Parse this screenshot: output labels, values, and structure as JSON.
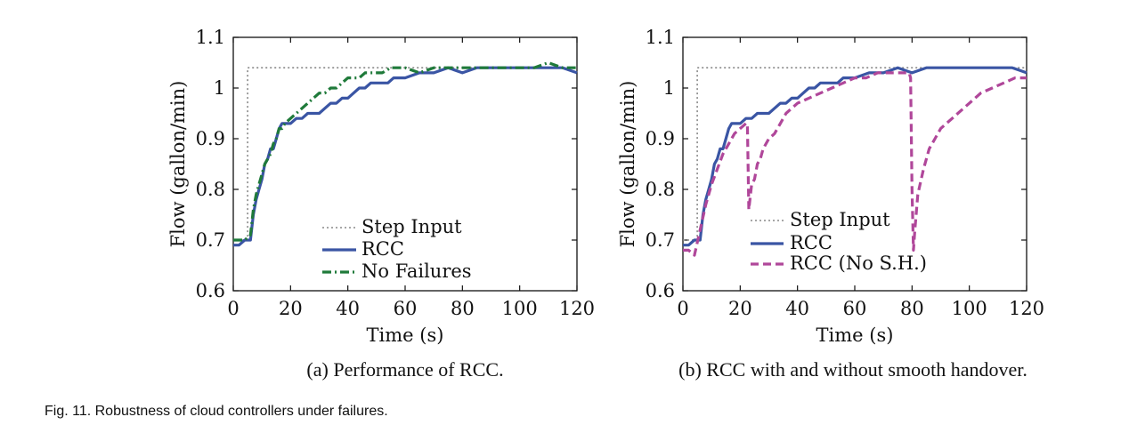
{
  "figure": {
    "caption": "Fig. 11. Robustness of cloud controllers under failures."
  },
  "chart_data": [
    {
      "type": "line",
      "subcaption": "(a) Performance of RCC.",
      "xlabel": "Time (s)",
      "ylabel": "Flow (gallon/min)",
      "xlim": [
        0,
        120
      ],
      "ylim": [
        0.6,
        1.1
      ],
      "xticks": [
        "0",
        "20",
        "40",
        "60",
        "80",
        "100",
        "120"
      ],
      "yticks": [
        "0.6",
        "0.7",
        "0.8",
        "0.9",
        "1",
        "1.1"
      ],
      "grid": false,
      "legend": "bottom-center",
      "series": [
        {
          "name": "Step Input",
          "style": "dotted",
          "color": "#888888",
          "x": [
            0,
            5,
            5,
            120
          ],
          "y": [
            0.7,
            0.7,
            1.04,
            1.04
          ]
        },
        {
          "name": "RCC",
          "style": "solid",
          "color": "#3a55a4",
          "x": [
            0,
            2,
            4,
            6,
            7,
            8,
            9,
            10,
            11,
            12,
            13,
            14,
            15,
            16,
            17,
            18,
            19,
            20,
            22,
            24,
            26,
            28,
            30,
            32,
            34,
            36,
            38,
            40,
            42,
            44,
            46,
            48,
            50,
            52,
            54,
            56,
            58,
            60,
            65,
            70,
            75,
            80,
            85,
            90,
            95,
            100,
            105,
            110,
            115,
            120
          ],
          "y": [
            0.69,
            0.69,
            0.7,
            0.7,
            0.75,
            0.78,
            0.8,
            0.82,
            0.85,
            0.86,
            0.88,
            0.88,
            0.9,
            0.92,
            0.93,
            0.93,
            0.93,
            0.93,
            0.94,
            0.94,
            0.95,
            0.95,
            0.95,
            0.96,
            0.97,
            0.97,
            0.98,
            0.98,
            0.99,
            1.0,
            1.0,
            1.01,
            1.01,
            1.01,
            1.01,
            1.02,
            1.02,
            1.02,
            1.03,
            1.03,
            1.04,
            1.03,
            1.04,
            1.04,
            1.04,
            1.04,
            1.04,
            1.04,
            1.04,
            1.03
          ]
        },
        {
          "name": "No Failures",
          "style": "dashdot",
          "color": "#1f7a3a",
          "x": [
            0,
            2,
            4,
            6,
            7,
            8,
            9,
            10,
            11,
            12,
            13,
            14,
            15,
            16,
            17,
            18,
            20,
            22,
            24,
            26,
            28,
            30,
            32,
            34,
            36,
            38,
            40,
            42,
            44,
            46,
            48,
            50,
            52,
            55,
            60,
            65,
            70,
            75,
            80,
            85,
            90,
            95,
            100,
            105,
            110,
            115,
            120
          ],
          "y": [
            0.7,
            0.7,
            0.7,
            0.71,
            0.76,
            0.79,
            0.81,
            0.83,
            0.85,
            0.86,
            0.87,
            0.89,
            0.9,
            0.92,
            0.92,
            0.93,
            0.94,
            0.95,
            0.96,
            0.97,
            0.98,
            0.99,
            0.99,
            1.0,
            1.0,
            1.01,
            1.02,
            1.02,
            1.02,
            1.03,
            1.03,
            1.03,
            1.03,
            1.04,
            1.04,
            1.03,
            1.04,
            1.04,
            1.04,
            1.04,
            1.04,
            1.04,
            1.04,
            1.04,
            1.05,
            1.04,
            1.04
          ]
        }
      ]
    },
    {
      "type": "line",
      "subcaption": "(b) RCC with and without smooth handover.",
      "xlabel": "Time (s)",
      "ylabel": "Flow (gallon/min)",
      "xlim": [
        0,
        120
      ],
      "ylim": [
        0.6,
        1.1
      ],
      "xticks": [
        "0",
        "20",
        "40",
        "60",
        "80",
        "100",
        "120"
      ],
      "yticks": [
        "0.6",
        "0.7",
        "0.8",
        "0.9",
        "1",
        "1.1"
      ],
      "grid": false,
      "legend": "bottom-center",
      "series": [
        {
          "name": "Step Input",
          "style": "dotted",
          "color": "#888888",
          "x": [
            0,
            5,
            5,
            120
          ],
          "y": [
            0.7,
            0.7,
            1.04,
            1.04
          ]
        },
        {
          "name": "RCC",
          "style": "solid",
          "color": "#3a55a4",
          "x": [
            0,
            2,
            4,
            6,
            7,
            8,
            9,
            10,
            11,
            12,
            13,
            14,
            15,
            16,
            17,
            18,
            19,
            20,
            22,
            24,
            26,
            28,
            30,
            32,
            34,
            36,
            38,
            40,
            42,
            44,
            46,
            48,
            50,
            52,
            54,
            56,
            58,
            60,
            65,
            70,
            75,
            80,
            85,
            90,
            95,
            100,
            105,
            110,
            115,
            120
          ],
          "y": [
            0.69,
            0.69,
            0.7,
            0.7,
            0.75,
            0.78,
            0.8,
            0.82,
            0.85,
            0.86,
            0.88,
            0.88,
            0.9,
            0.92,
            0.93,
            0.93,
            0.93,
            0.93,
            0.94,
            0.94,
            0.95,
            0.95,
            0.95,
            0.96,
            0.97,
            0.97,
            0.98,
            0.98,
            0.99,
            1.0,
            1.0,
            1.01,
            1.01,
            1.01,
            1.01,
            1.02,
            1.02,
            1.02,
            1.03,
            1.03,
            1.04,
            1.03,
            1.04,
            1.04,
            1.04,
            1.04,
            1.04,
            1.04,
            1.04,
            1.03
          ]
        },
        {
          "name": "RCC (No S.H.)",
          "style": "dashed",
          "color": "#b0479a",
          "x": [
            0,
            2,
            4,
            6,
            8,
            10,
            12,
            14,
            16,
            18,
            20,
            22,
            22.5,
            23,
            24,
            25,
            26,
            27,
            28,
            30,
            32,
            34,
            36,
            38,
            40,
            44,
            48,
            52,
            56,
            60,
            64,
            68,
            72,
            76,
            78,
            79,
            79.5,
            80,
            80.5,
            81,
            82,
            84,
            86,
            88,
            90,
            92,
            94,
            96,
            98,
            100,
            104,
            108,
            112,
            116,
            120
          ],
          "y": [
            0.68,
            0.68,
            0.67,
            0.72,
            0.77,
            0.81,
            0.84,
            0.87,
            0.89,
            0.91,
            0.92,
            0.93,
            0.93,
            0.76,
            0.81,
            0.82,
            0.85,
            0.86,
            0.88,
            0.9,
            0.91,
            0.93,
            0.95,
            0.96,
            0.97,
            0.98,
            0.99,
            1.0,
            1.01,
            1.02,
            1.02,
            1.03,
            1.03,
            1.03,
            1.03,
            1.03,
            1.02,
            0.8,
            0.68,
            0.72,
            0.79,
            0.84,
            0.88,
            0.9,
            0.92,
            0.93,
            0.94,
            0.95,
            0.96,
            0.97,
            0.99,
            1.0,
            1.01,
            1.02,
            1.02
          ]
        }
      ]
    }
  ]
}
